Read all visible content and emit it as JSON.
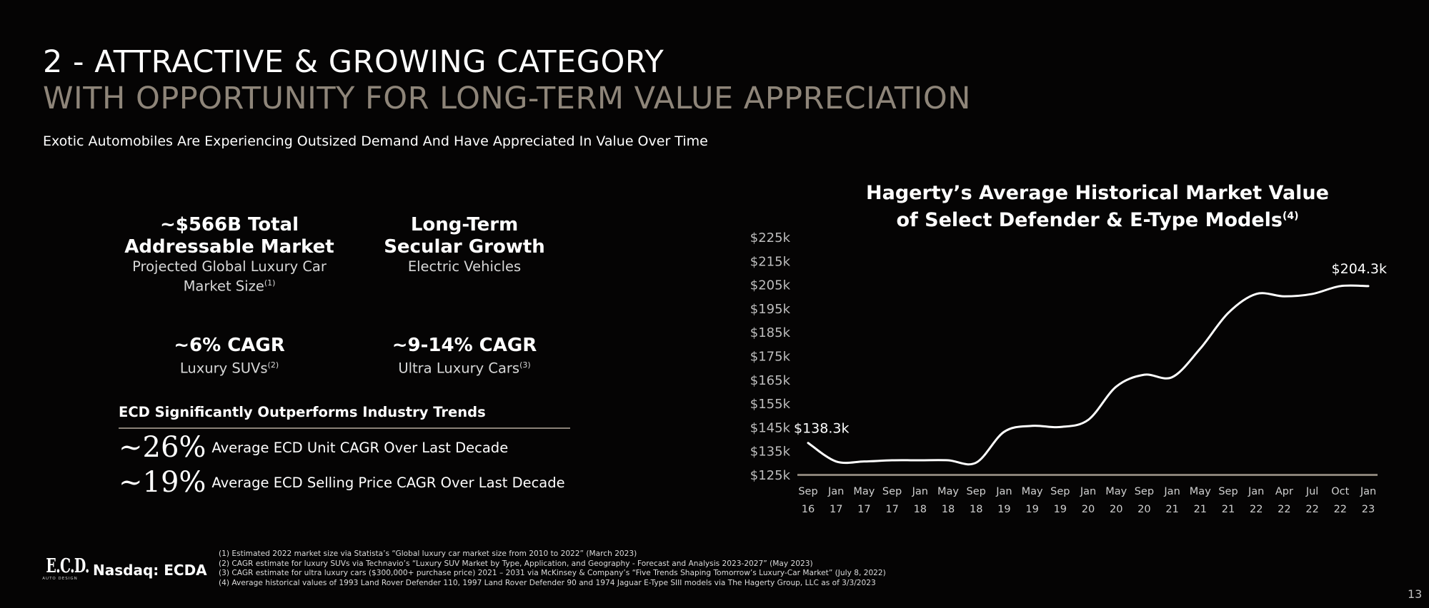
{
  "header": {
    "title_line1": "2 - ATTRACTIVE & GROWING CATEGORY",
    "title_line2": "WITH OPPORTUNITY FOR LONG-TERM VALUE APPRECIATION",
    "subtitle": "Exotic Automobiles Are Experiencing Outsized Demand And Have Appreciated In Value Over Time"
  },
  "kpis": [
    {
      "headline_1": "~$566B Total",
      "headline_2": "Addressable Market",
      "desc_1": "Projected Global Luxury Car",
      "desc_2": "Market Size",
      "note": "(1)"
    },
    {
      "headline_1": "Long-Term",
      "headline_2": "Secular Growth",
      "desc_1": "Electric Vehicles"
    },
    {
      "headline_1": "~6% CAGR",
      "desc_1": "Luxury SUVs",
      "note": "(2)"
    },
    {
      "headline_1": "~9-14% CAGR",
      "desc_1": "Ultra Luxury Cars",
      "note": "(3)"
    }
  ],
  "outperform": {
    "heading": "ECD Significantly Outperforms Industry Trends",
    "stats": [
      {
        "value": "~26%",
        "label": "Average ECD Unit CAGR Over Last Decade"
      },
      {
        "value": "~19%",
        "label": "Average ECD Selling Price CAGR Over Last Decade"
      }
    ]
  },
  "chart_data": {
    "type": "line",
    "title_line1": "Hagerty’s Average Historical Market Value",
    "title_line2": "of Select Defender & E-Type Models",
    "title_note": "(4)",
    "y_ticks": [
      "$125k",
      "$135k",
      "$145k",
      "$155k",
      "$165k",
      "$175k",
      "$185k",
      "$195k",
      "$205k",
      "$215k",
      "$225k"
    ],
    "ylim": [
      125,
      225
    ],
    "y_unit": "$k",
    "x_ticks": [
      {
        "month": "Sep",
        "year": "16"
      },
      {
        "month": "Jan",
        "year": "17"
      },
      {
        "month": "May",
        "year": "17"
      },
      {
        "month": "Sep",
        "year": "17"
      },
      {
        "month": "Jan",
        "year": "18"
      },
      {
        "month": "May",
        "year": "18"
      },
      {
        "month": "Sep",
        "year": "18"
      },
      {
        "month": "Jan",
        "year": "19"
      },
      {
        "month": "May",
        "year": "19"
      },
      {
        "month": "Sep",
        "year": "19"
      },
      {
        "month": "Jan",
        "year": "20"
      },
      {
        "month": "May",
        "year": "20"
      },
      {
        "month": "Sep",
        "year": "20"
      },
      {
        "month": "Jan",
        "year": "21"
      },
      {
        "month": "May",
        "year": "21"
      },
      {
        "month": "Sep",
        "year": "21"
      },
      {
        "month": "Jan",
        "year": "22"
      },
      {
        "month": "Apr",
        "year": "22"
      },
      {
        "month": "Jul",
        "year": "22"
      },
      {
        "month": "Oct",
        "year": "22"
      },
      {
        "month": "Jan",
        "year": "23"
      }
    ],
    "series": [
      {
        "x": [
          "Sep 16",
          "Jan 17",
          "May 17",
          "Sep 17",
          "Jan 18",
          "May 18",
          "Sep 18",
          "Jan 19",
          "May 19",
          "Sep 19",
          "Jan 20",
          "May 20",
          "Sep 20",
          "Jan 21",
          "May 21",
          "Sep 21",
          "Jan 22",
          "Apr 22",
          "Jul 22",
          "Oct 22",
          "Jan 23"
        ],
        "values": [
          138.3,
          130.5,
          130.5,
          131,
          131,
          131,
          130,
          143,
          145.5,
          145,
          148,
          162,
          167,
          166,
          178,
          193,
          201,
          200,
          201,
          204.3,
          204.3
        ]
      }
    ],
    "start_label": "$138.3k",
    "end_label": "$204.3k",
    "grid": false,
    "line_color": "#ffffff",
    "axis_color": "#8a8278",
    "tick_color": "#bdbdbd"
  },
  "footer": {
    "logo_text": "E.C.D.",
    "logo_sub": "AUTO DESIGN",
    "ticker": "Nasdaq: ECDA",
    "footnotes": [
      "(1) Estimated 2022 market size via Statista’s “Global luxury car market size from 2010 to 2022” (March 2023)",
      "(2) CAGR estimate for luxury SUVs via Technavio’s “Luxury SUV Market by Type, Application, and Geography - Forecast and Analysis 2023-2027” (May 2023)",
      "(3) CAGR estimate for ultra luxury cars ($300,000+ purchase price) 2021 – 2031 via McKinsey & Company’s “Five Trends Shaping Tomorrow’s Luxury-Car Market” (July 8, 2022)",
      "(4) Average historical values of 1993 Land Rover Defender 110, 1997 Land Rover Defender 90 and 1974 Jaguar E-Type SIII models via The Hagerty Group, LLC as of 3/3/2023"
    ],
    "page_number": "13"
  },
  "colors": {
    "background": "#050404",
    "title_accent": "#8e8579",
    "rule": "#8a8278"
  }
}
